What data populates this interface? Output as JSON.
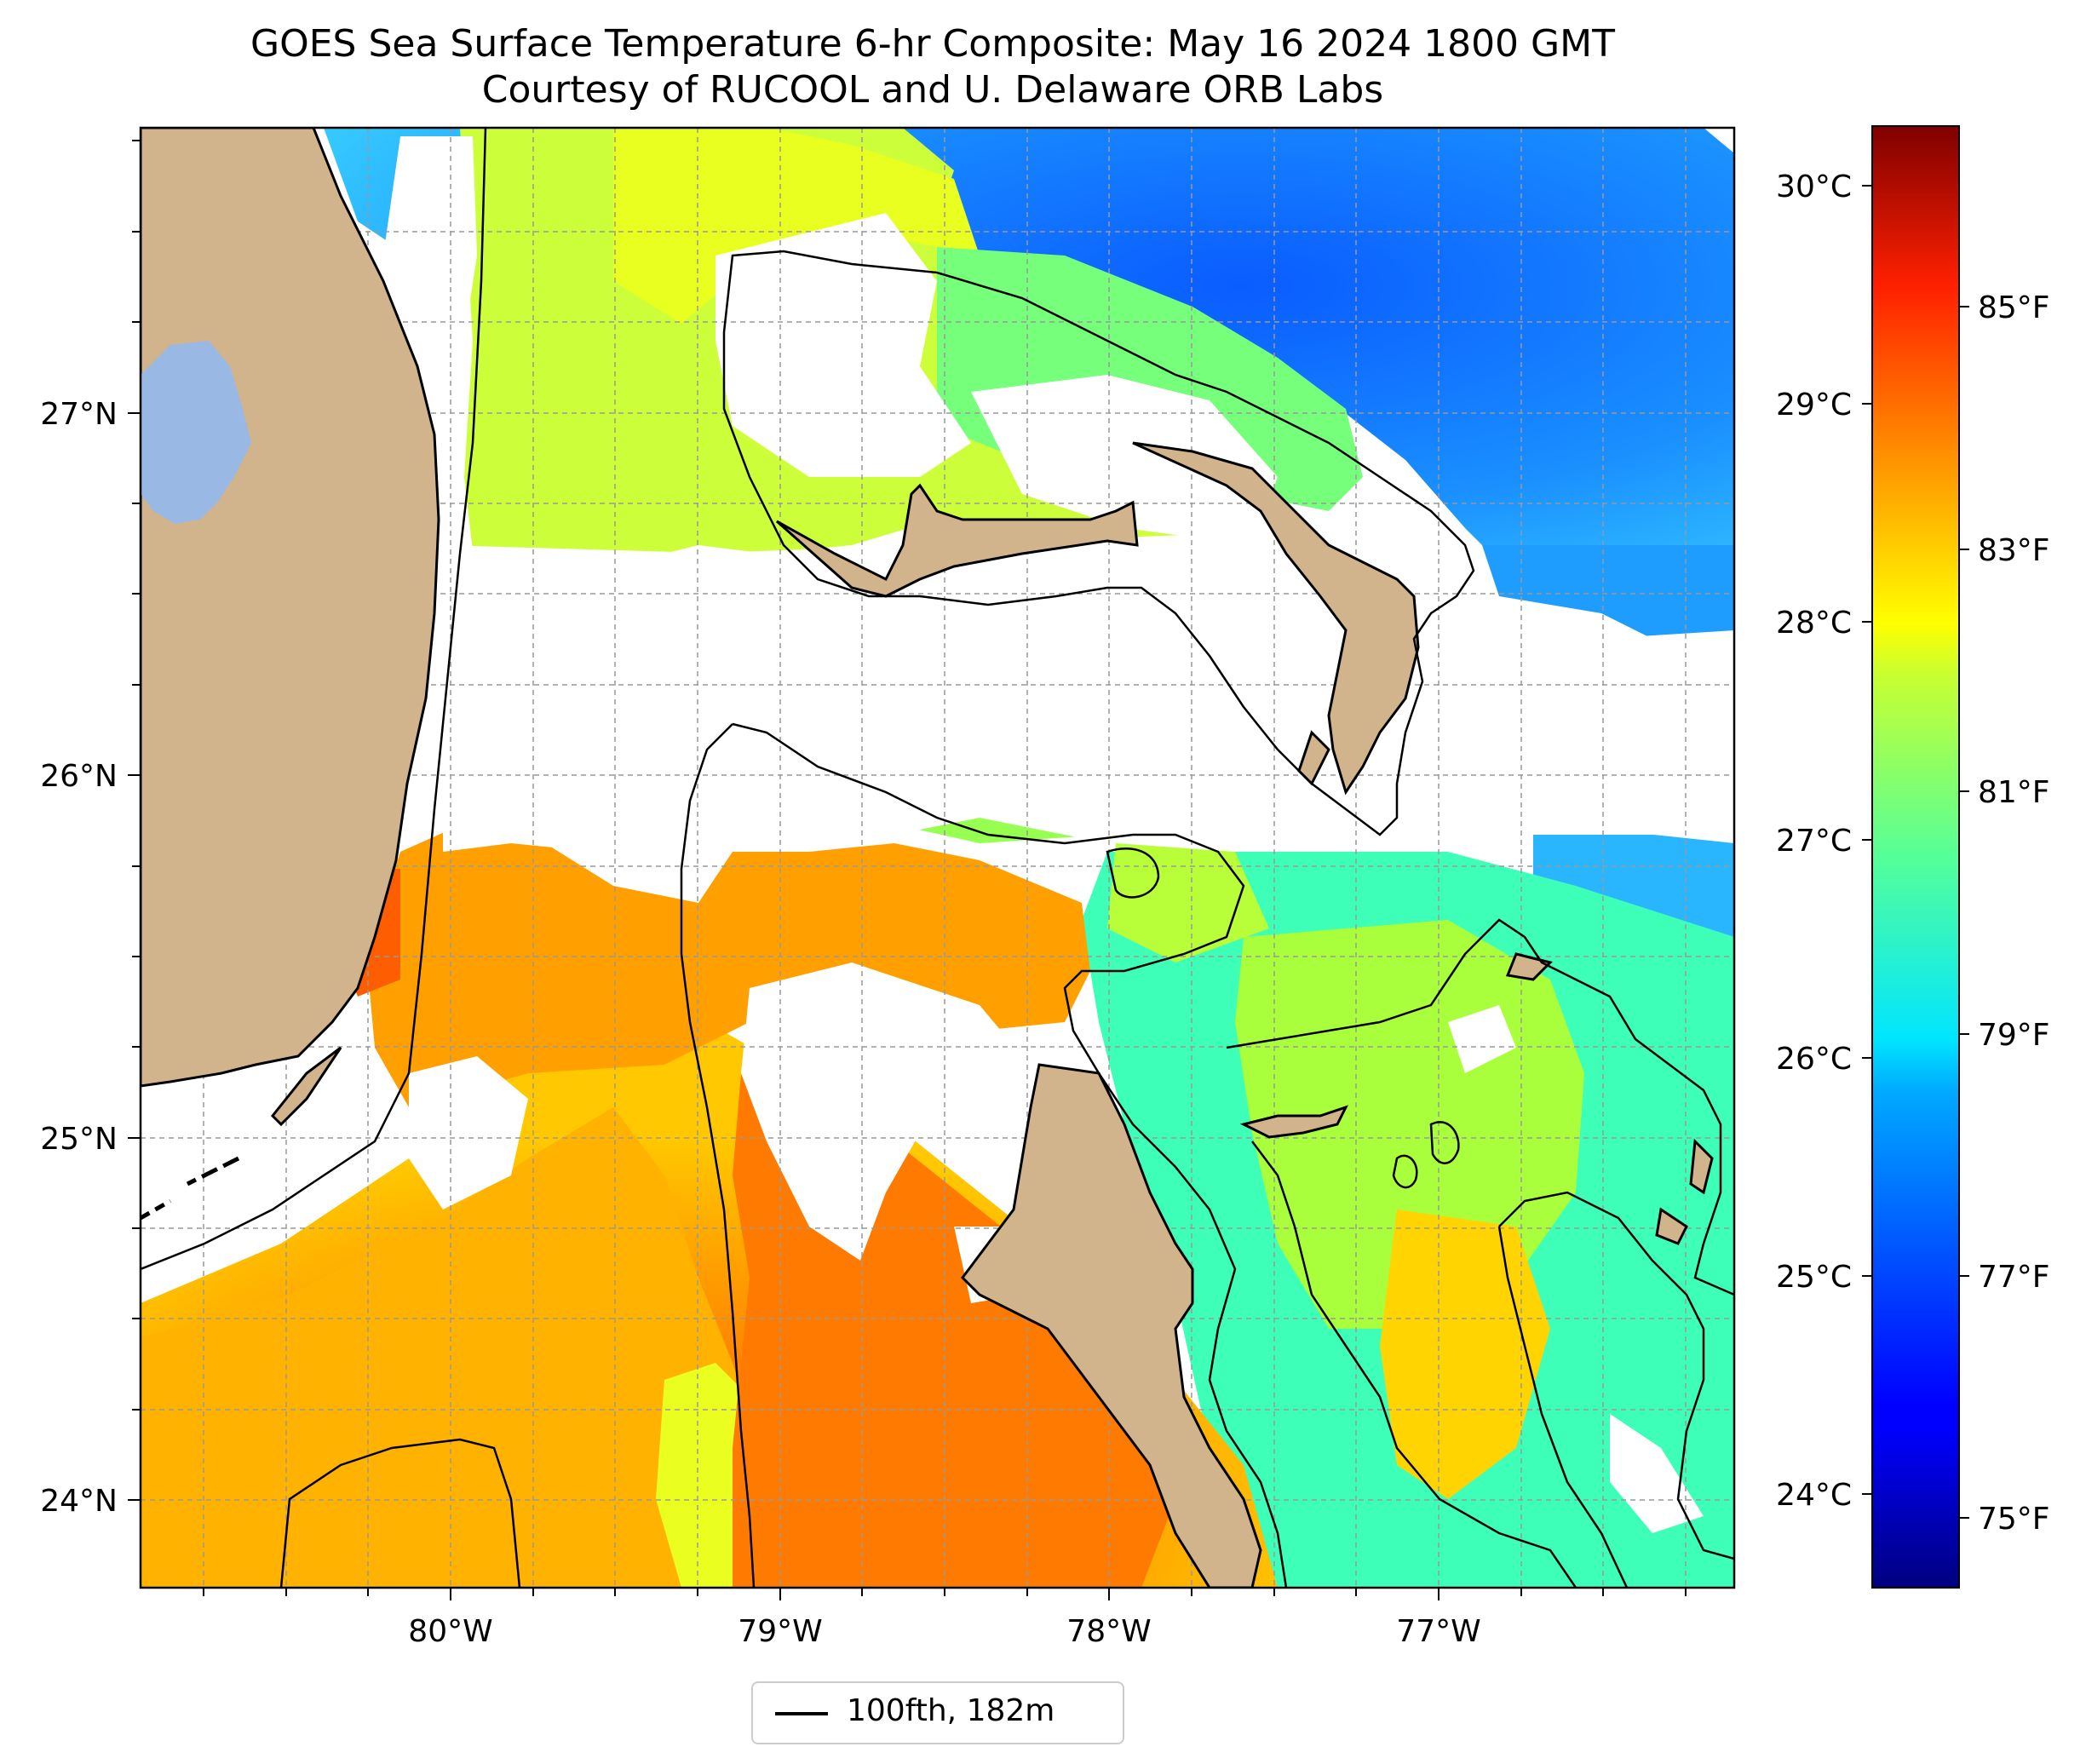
{
  "title_line1": "GOES Sea Surface Temperature 6-hr Composite: May 16 2024 1800 GMT",
  "title_line2": "Courtesy of RUCOOL and U. Delaware ORB Labs",
  "map": {
    "lon_labels": [
      "80°W",
      "79°W",
      "78°W",
      "77°W"
    ],
    "lat_labels": [
      "27°N",
      "26°N",
      "25°N",
      "24°N"
    ],
    "colors": {
      "land": "#d2b48c",
      "lake": "#9ab8e4",
      "cloud_mask": "#ffffff",
      "contour": "#000000"
    }
  },
  "colorbar": {
    "colormap": "jet",
    "celsius_labels": [
      "30°C",
      "29°C",
      "28°C",
      "27°C",
      "26°C",
      "25°C",
      "24°C"
    ],
    "fahrenheit_labels": [
      "85°F",
      "83°F",
      "81°F",
      "79°F",
      "77°F",
      "75°F"
    ]
  },
  "legend": {
    "label": "100fth, 182m"
  }
}
